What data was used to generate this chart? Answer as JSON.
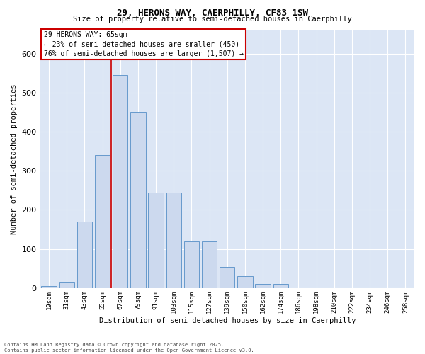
{
  "title1": "29, HERONS WAY, CAERPHILLY, CF83 1SW",
  "title2": "Size of property relative to semi-detached houses in Caerphilly",
  "xlabel": "Distribution of semi-detached houses by size in Caerphilly",
  "ylabel": "Number of semi-detached properties",
  "categories": [
    "19sqm",
    "31sqm",
    "43sqm",
    "55sqm",
    "67sqm",
    "79sqm",
    "91sqm",
    "103sqm",
    "115sqm",
    "127sqm",
    "139sqm",
    "150sqm",
    "162sqm",
    "174sqm",
    "186sqm",
    "198sqm",
    "210sqm",
    "222sqm",
    "234sqm",
    "246sqm",
    "258sqm"
  ],
  "values": [
    5,
    15,
    170,
    340,
    545,
    450,
    245,
    245,
    120,
    120,
    55,
    30,
    10,
    10,
    0,
    0,
    0,
    0,
    0,
    0,
    0
  ],
  "bar_color": "#ccd9ee",
  "bar_edge_color": "#6699cc",
  "vline_color": "#cc0000",
  "vline_x_index": 4,
  "annotation_text": "29 HERONS WAY: 65sqm\n← 23% of semi-detached houses are smaller (450)\n76% of semi-detached houses are larger (1,507) →",
  "annotation_box_color": "#ffffff",
  "annotation_box_edge": "#cc0000",
  "ylim": [
    0,
    660
  ],
  "yticks": [
    0,
    100,
    200,
    300,
    400,
    500,
    600
  ],
  "background_color": "#dce6f5",
  "footer1": "Contains HM Land Registry data © Crown copyright and database right 2025.",
  "footer2": "Contains public sector information licensed under the Open Government Licence v3.0."
}
